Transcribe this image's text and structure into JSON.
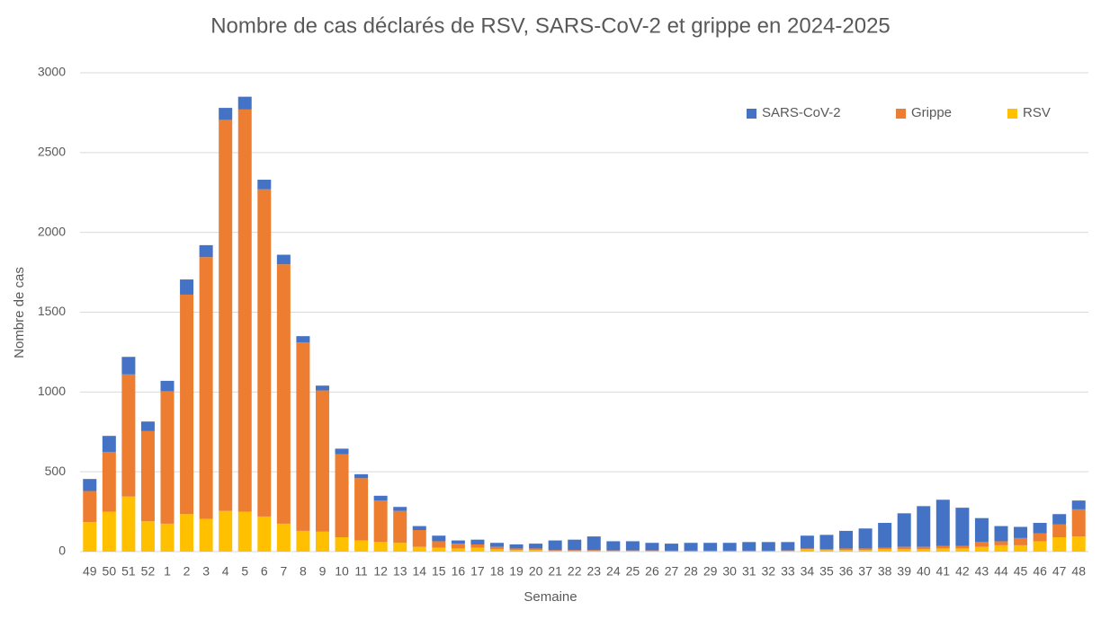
{
  "chart_data": {
    "type": "bar",
    "stacked": true,
    "title": "Nombre de cas déclarés de RSV, SARS-CoV-2 et grippe en 2024-2025",
    "x_label": "Semaine",
    "y_label": "Nombre de cas",
    "categories": [
      "49",
      "50",
      "51",
      "52",
      "1",
      "2",
      "3",
      "4",
      "5",
      "6",
      "7",
      "8",
      "9",
      "10",
      "11",
      "12",
      "13",
      "14",
      "15",
      "16",
      "17",
      "18",
      "19",
      "20",
      "21",
      "22",
      "23",
      "24",
      "25",
      "26",
      "27",
      "28",
      "29",
      "30",
      "31",
      "32",
      "33",
      "34",
      "35",
      "36",
      "37",
      "38",
      "39",
      "40",
      "41",
      "42",
      "43",
      "44",
      "45",
      "46",
      "47",
      "48"
    ],
    "series": [
      {
        "name": "SARS-CoV-2",
        "color": "#4472c4",
        "values": [
          75,
          100,
          110,
          60,
          65,
          95,
          75,
          75,
          80,
          60,
          60,
          40,
          30,
          35,
          25,
          30,
          25,
          25,
          35,
          20,
          30,
          25,
          25,
          30,
          60,
          65,
          85,
          57,
          57,
          47,
          44,
          49,
          49,
          49,
          54,
          54,
          52,
          80,
          90,
          110,
          125,
          155,
          210,
          255,
          290,
          240,
          150,
          95,
          70,
          65,
          65,
          55
        ]
      },
      {
        "name": "Grippe",
        "color": "#ed7d31",
        "values": [
          195,
          375,
          765,
          565,
          830,
          1375,
          1640,
          2450,
          2520,
          2050,
          1625,
          1180,
          885,
          520,
          390,
          260,
          200,
          105,
          40,
          30,
          20,
          15,
          10,
          10,
          5,
          5,
          5,
          3,
          3,
          3,
          3,
          3,
          3,
          3,
          3,
          3,
          3,
          5,
          5,
          10,
          10,
          10,
          15,
          15,
          15,
          15,
          30,
          25,
          45,
          50,
          80,
          170
        ]
      },
      {
        "name": "RSV",
        "color": "#ffc000",
        "values": [
          185,
          250,
          345,
          190,
          175,
          235,
          205,
          255,
          250,
          220,
          175,
          130,
          125,
          90,
          70,
          60,
          55,
          30,
          25,
          20,
          25,
          15,
          10,
          10,
          5,
          5,
          5,
          5,
          5,
          5,
          3,
          3,
          3,
          3,
          3,
          3,
          5,
          15,
          10,
          10,
          10,
          15,
          15,
          15,
          20,
          20,
          30,
          40,
          40,
          65,
          90,
          95
        ]
      }
    ],
    "ylim": [
      0,
      3000
    ],
    "yticks": [
      0,
      500,
      1000,
      1500,
      2000,
      2500,
      3000
    ],
    "grid": true,
    "legend": "top-right"
  }
}
